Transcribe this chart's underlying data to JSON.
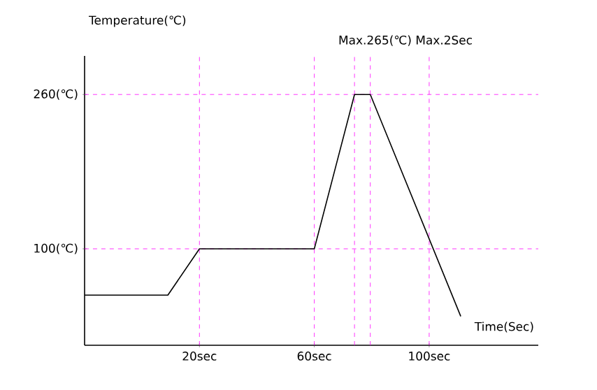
{
  "chart_data": {
    "type": "line",
    "xlabel": "Time(Sec)",
    "ylabel": "Temperature(℃)",
    "x": [
      -20,
      9,
      20,
      60,
      74,
      79.5,
      111
    ],
    "values": [
      52,
      52,
      100,
      100,
      260,
      260,
      30
    ],
    "color": "#000000",
    "marker": "none",
    "line_style": "solid",
    "xlim": [
      -20,
      138
    ],
    "ylim": [
      0,
      300
    ],
    "xticks": [
      {
        "value": 20,
        "label": "20sec"
      },
      {
        "value": 60,
        "label": "60sec"
      },
      {
        "value": 100,
        "label": "100sec"
      }
    ],
    "yticks": [
      {
        "value": 100,
        "label": "100(℃)"
      },
      {
        "value": 260,
        "label": "260(℃)"
      }
    ],
    "ref_lines": [
      {
        "axis": "y",
        "value": 100,
        "color": "#ff00ff",
        "line_style": "dashed"
      },
      {
        "axis": "y",
        "value": 260,
        "color": "#ff00ff",
        "line_style": "dashed"
      },
      {
        "axis": "x",
        "value": 20,
        "color": "#ff00ff",
        "line_style": "dashed"
      },
      {
        "axis": "x",
        "value": 60,
        "color": "#ff00ff",
        "line_style": "dashed"
      },
      {
        "axis": "x",
        "value": 74,
        "color": "#ff00ff",
        "line_style": "dashed"
      },
      {
        "axis": "x",
        "value": 79.5,
        "color": "#ff00ff",
        "line_style": "dashed"
      },
      {
        "axis": "x",
        "value": 100,
        "color": "#ff00ff",
        "line_style": "dashed"
      }
    ],
    "annotations": [
      "Max.265(℃) Max.2Sec"
    ]
  }
}
